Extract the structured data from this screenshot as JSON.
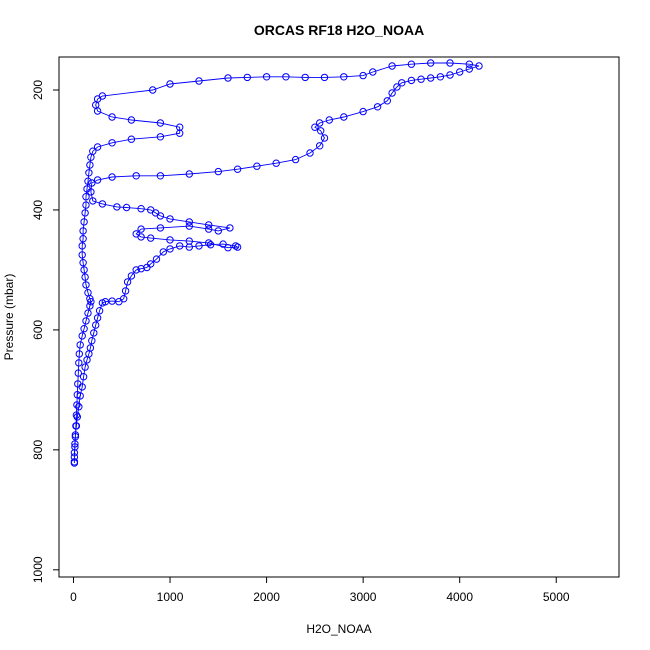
{
  "chart_data": {
    "type": "scatter",
    "title": "ORCAS RF18 H2O_NOAA",
    "xlabel": "H2O_NOAA",
    "ylabel": "Pressure (mbar)",
    "xlim": [
      -150,
      5650
    ],
    "ylim": [
      1012,
      145
    ],
    "y_reversed": true,
    "grid": false,
    "x_ticks": [
      0,
      1000,
      2000,
      3000,
      4000,
      5000
    ],
    "y_ticks": [
      200,
      400,
      600,
      800,
      1000
    ],
    "series": [
      {
        "color": "#0000ff",
        "marker": "open-circle",
        "connected": true,
        "points": [
          [
            10,
            820
          ],
          [
            10,
            805
          ],
          [
            15,
            790
          ],
          [
            20,
            775
          ],
          [
            30,
            760
          ],
          [
            40,
            745
          ],
          [
            55,
            728
          ],
          [
            70,
            710
          ],
          [
            90,
            695
          ],
          [
            105,
            678
          ],
          [
            120,
            662
          ],
          [
            140,
            650
          ],
          [
            160,
            640
          ],
          [
            175,
            630
          ],
          [
            190,
            618
          ],
          [
            210,
            605
          ],
          [
            230,
            592
          ],
          [
            250,
            580
          ],
          [
            270,
            568
          ],
          [
            300,
            555
          ],
          [
            330,
            553
          ],
          [
            400,
            552
          ],
          [
            470,
            553
          ],
          [
            520,
            548
          ],
          [
            540,
            535
          ],
          [
            560,
            520
          ],
          [
            600,
            510
          ],
          [
            650,
            500
          ],
          [
            700,
            498
          ],
          [
            760,
            496
          ],
          [
            800,
            490
          ],
          [
            860,
            482
          ],
          [
            930,
            470
          ],
          [
            1000,
            465
          ],
          [
            1100,
            460
          ],
          [
            1200,
            462
          ],
          [
            1300,
            460
          ],
          [
            1420,
            458
          ],
          [
            1550,
            457
          ],
          [
            1680,
            460
          ],
          [
            1700,
            462
          ],
          [
            1600,
            463
          ],
          [
            1400,
            455
          ],
          [
            1200,
            452
          ],
          [
            1000,
            450
          ],
          [
            800,
            447
          ],
          [
            700,
            445
          ],
          [
            650,
            440
          ],
          [
            700,
            432
          ],
          [
            900,
            430
          ],
          [
            1200,
            427
          ],
          [
            1400,
            432
          ],
          [
            1500,
            435
          ],
          [
            1620,
            430
          ],
          [
            1400,
            425
          ],
          [
            1200,
            420
          ],
          [
            1000,
            415
          ],
          [
            900,
            410
          ],
          [
            850,
            405
          ],
          [
            800,
            400
          ],
          [
            700,
            398
          ],
          [
            550,
            396
          ],
          [
            450,
            395
          ],
          [
            300,
            390
          ],
          [
            200,
            385
          ],
          [
            180,
            370
          ],
          [
            190,
            355
          ],
          [
            250,
            350
          ],
          [
            400,
            345
          ],
          [
            650,
            343
          ],
          [
            900,
            343
          ],
          [
            1200,
            340
          ],
          [
            1500,
            336
          ],
          [
            1700,
            332
          ],
          [
            1900,
            327
          ],
          [
            2100,
            322
          ],
          [
            2300,
            316
          ],
          [
            2450,
            305
          ],
          [
            2550,
            293
          ],
          [
            2600,
            280
          ],
          [
            2560,
            268
          ],
          [
            2500,
            262
          ],
          [
            2550,
            255
          ],
          [
            2650,
            250
          ],
          [
            2800,
            245
          ],
          [
            3000,
            236
          ],
          [
            3150,
            228
          ],
          [
            3250,
            218
          ],
          [
            3300,
            205
          ],
          [
            3350,
            195
          ],
          [
            3400,
            188
          ],
          [
            3500,
            184
          ],
          [
            3600,
            182
          ],
          [
            3700,
            180
          ],
          [
            3800,
            178
          ],
          [
            3900,
            175
          ],
          [
            4000,
            170
          ],
          [
            4100,
            165
          ],
          [
            4200,
            160
          ],
          [
            4100,
            157
          ],
          [
            3900,
            155
          ],
          [
            3700,
            155
          ],
          [
            3500,
            157
          ],
          [
            3300,
            160
          ],
          [
            3100,
            170
          ],
          [
            3000,
            176
          ],
          [
            2800,
            178
          ],
          [
            2600,
            179
          ],
          [
            2400,
            179
          ],
          [
            2200,
            178
          ],
          [
            2000,
            178
          ],
          [
            1800,
            179
          ],
          [
            1600,
            180
          ],
          [
            1300,
            185
          ],
          [
            1000,
            190
          ],
          [
            820,
            200
          ],
          [
            300,
            210
          ],
          [
            250,
            215
          ],
          [
            230,
            225
          ],
          [
            250,
            235
          ],
          [
            400,
            245
          ],
          [
            600,
            250
          ],
          [
            900,
            255
          ],
          [
            1100,
            262
          ],
          [
            1100,
            272
          ],
          [
            900,
            278
          ],
          [
            600,
            282
          ],
          [
            400,
            288
          ],
          [
            250,
            295
          ],
          [
            200,
            302
          ],
          [
            180,
            312
          ],
          [
            170,
            325
          ],
          [
            160,
            338
          ],
          [
            150,
            352
          ],
          [
            140,
            365
          ],
          [
            130,
            378
          ],
          [
            130,
            392
          ],
          [
            120,
            405
          ],
          [
            110,
            420
          ],
          [
            100,
            435
          ],
          [
            100,
            448
          ],
          [
            90,
            460
          ],
          [
            90,
            475
          ],
          [
            100,
            488
          ],
          [
            110,
            500
          ],
          [
            120,
            512
          ],
          [
            130,
            525
          ],
          [
            150,
            538
          ],
          [
            170,
            548
          ],
          [
            180,
            553
          ],
          [
            170,
            560
          ],
          [
            150,
            572
          ],
          [
            130,
            585
          ],
          [
            110,
            598
          ],
          [
            90,
            610
          ],
          [
            70,
            625
          ],
          [
            60,
            640
          ],
          [
            55,
            655
          ],
          [
            50,
            672
          ],
          [
            45,
            690
          ],
          [
            40,
            708
          ],
          [
            35,
            725
          ],
          [
            30,
            742
          ],
          [
            25,
            760
          ],
          [
            20,
            778
          ],
          [
            15,
            795
          ],
          [
            10,
            812
          ],
          [
            10,
            822
          ]
        ]
      }
    ]
  }
}
